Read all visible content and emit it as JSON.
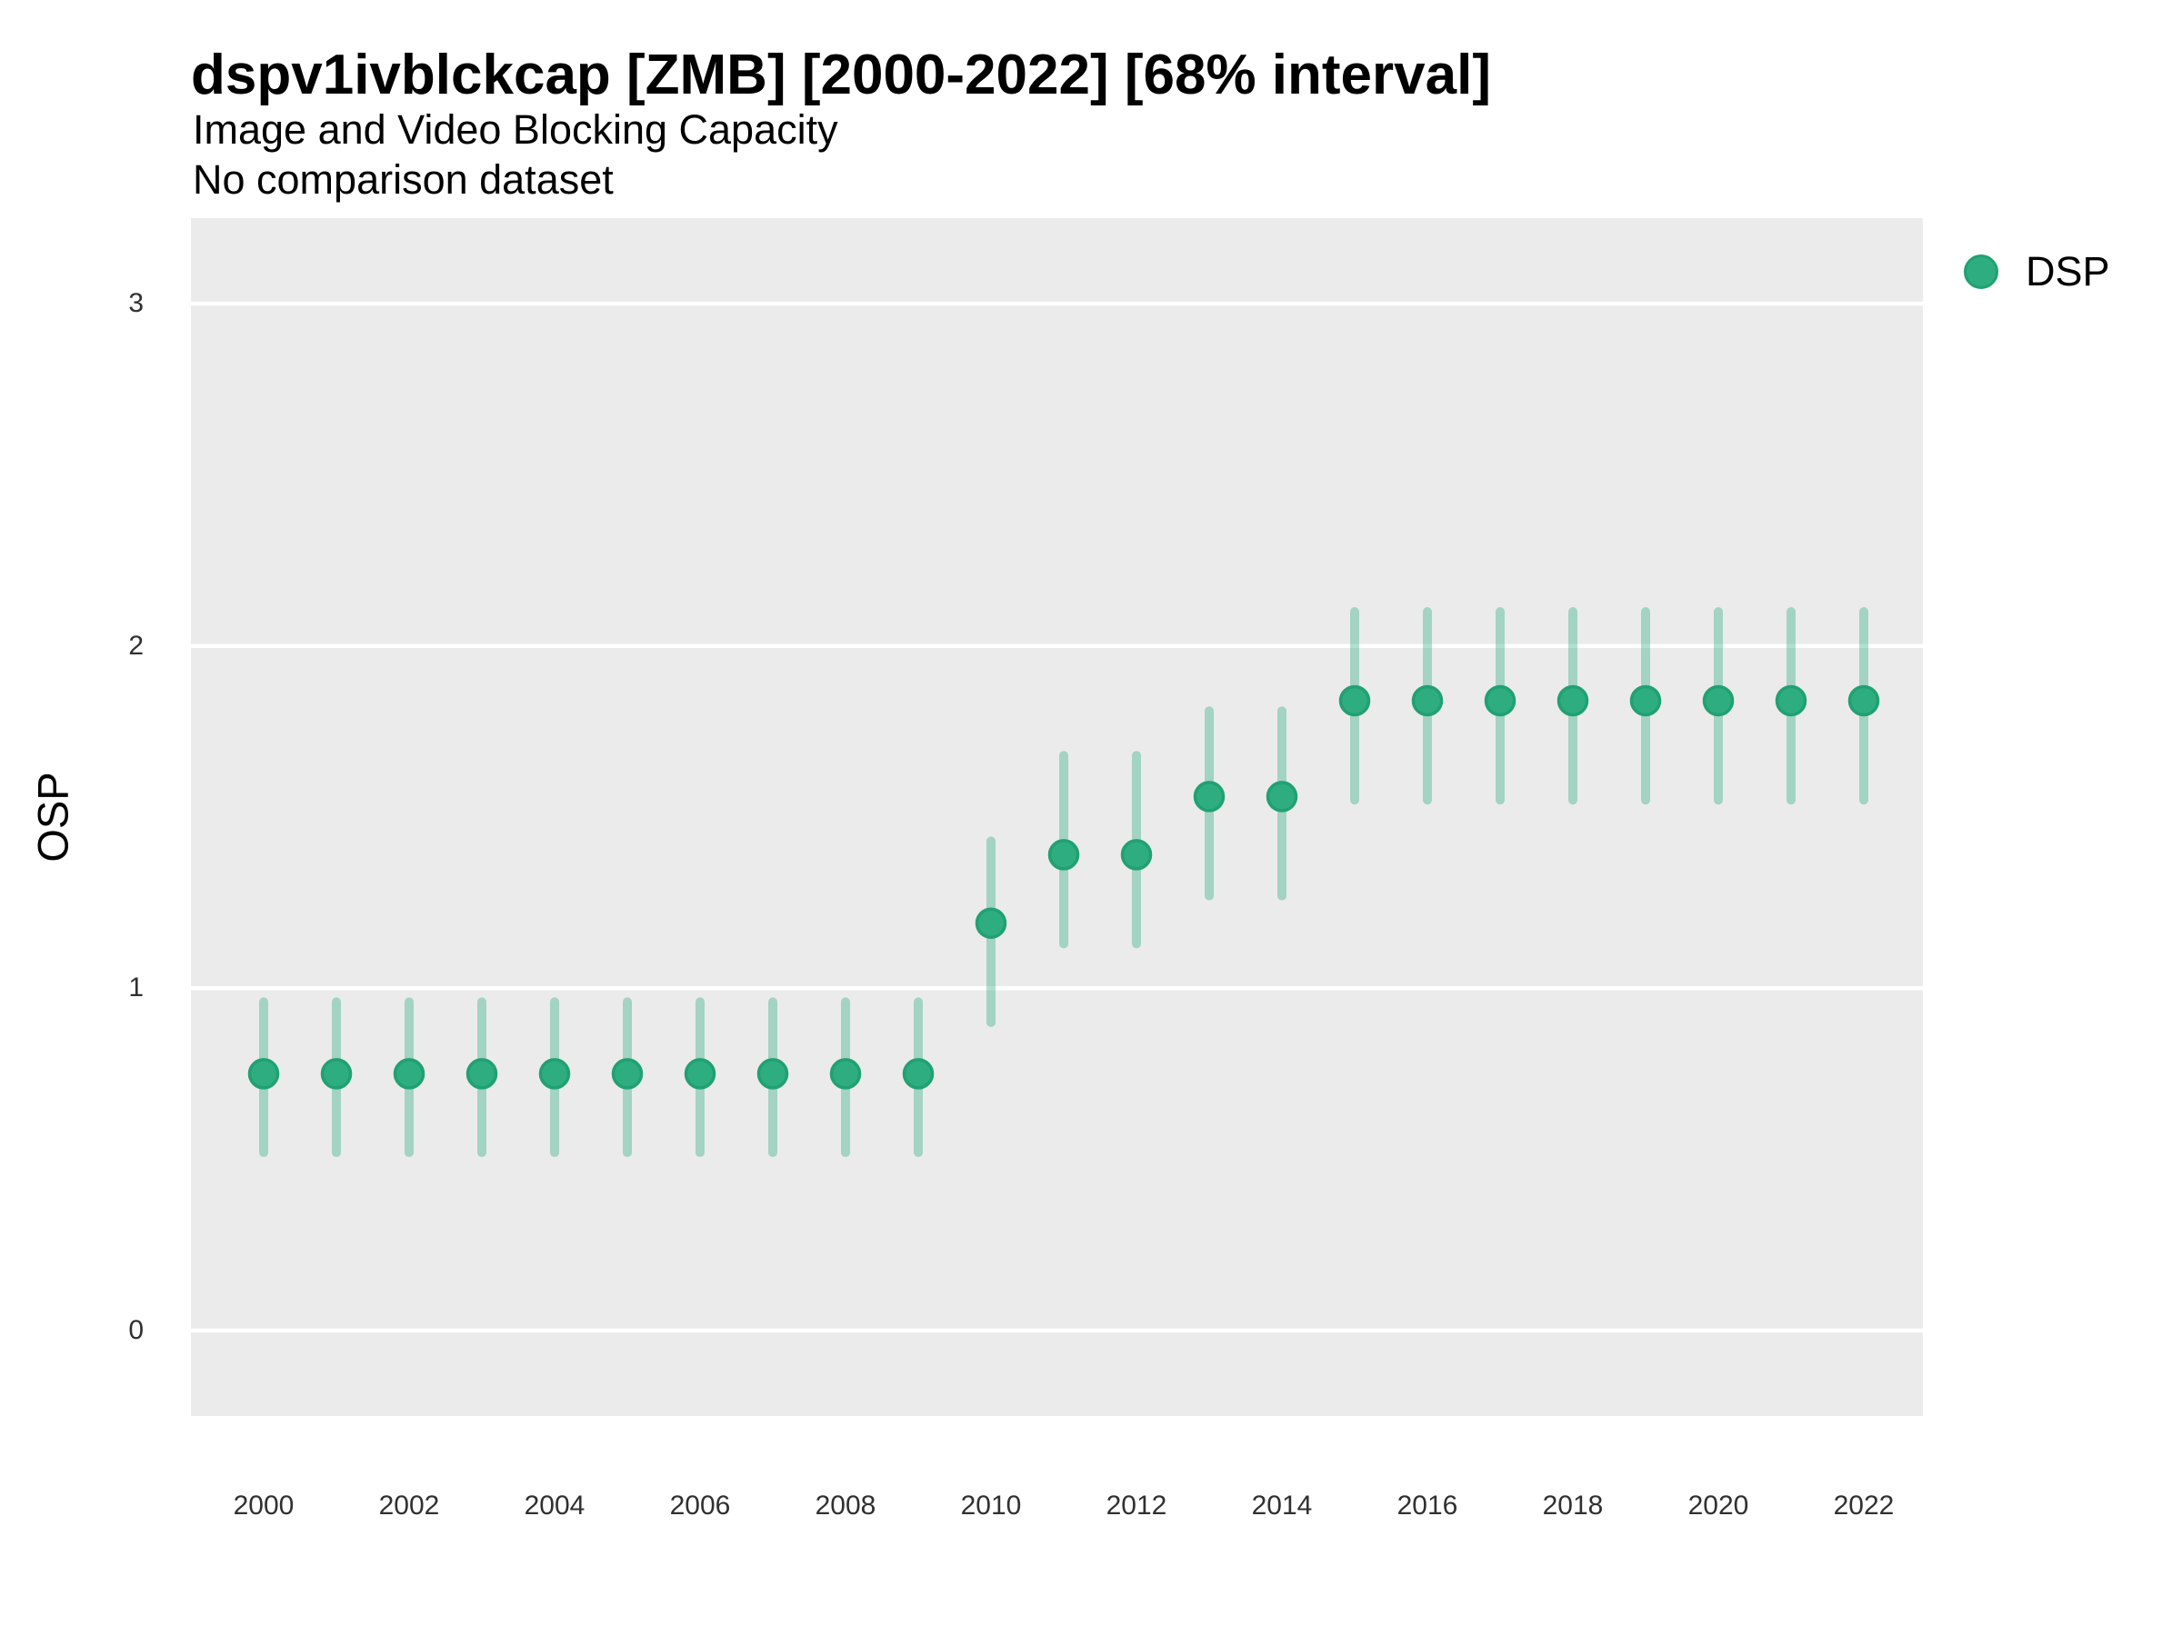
{
  "header": {
    "title": "dspv1ivblckcap [ZMB] [2000-2022] [68% interval]",
    "subtitle": "Image and Video Blocking Capacity",
    "note": "No comparison dataset"
  },
  "legend": {
    "label": "DSP"
  },
  "axes": {
    "y_title": "OSP",
    "x_title": ""
  },
  "colors": {
    "point_fill": "#2EAD80",
    "point_stroke": "#21A173",
    "interval": "rgba(47,174,128,0.38)",
    "panel_background": "#EBEBEB",
    "gridline": "#FFFFFF",
    "tick_text": "#303030"
  },
  "chart_data": {
    "type": "scatter",
    "subtype": "pointrange",
    "title": "dspv1ivblckcap [ZMB] [2000-2022] [68% interval]",
    "subtitle": "Image and Video Blocking Capacity",
    "note": "No comparison dataset",
    "xlabel": "",
    "ylabel": "OSP",
    "legend_position": "right",
    "grid": "major-horizontal",
    "interval_level": "68%",
    "xlim": [
      1999.0,
      2022.8125
    ],
    "ylim": [
      -0.25,
      3.25
    ],
    "x_ticks": [
      2000,
      2002,
      2004,
      2006,
      2008,
      2010,
      2012,
      2014,
      2016,
      2018,
      2020,
      2022
    ],
    "y_ticks": [
      0,
      1,
      2,
      3
    ],
    "series": [
      {
        "name": "DSP",
        "points": [
          {
            "year": 2000,
            "value": 0.75,
            "lo": 0.52,
            "hi": 0.96
          },
          {
            "year": 2001,
            "value": 0.75,
            "lo": 0.52,
            "hi": 0.96
          },
          {
            "year": 2002,
            "value": 0.75,
            "lo": 0.52,
            "hi": 0.96
          },
          {
            "year": 2003,
            "value": 0.75,
            "lo": 0.52,
            "hi": 0.96
          },
          {
            "year": 2004,
            "value": 0.75,
            "lo": 0.52,
            "hi": 0.96
          },
          {
            "year": 2005,
            "value": 0.75,
            "lo": 0.52,
            "hi": 0.96
          },
          {
            "year": 2006,
            "value": 0.75,
            "lo": 0.52,
            "hi": 0.96
          },
          {
            "year": 2007,
            "value": 0.75,
            "lo": 0.52,
            "hi": 0.96
          },
          {
            "year": 2008,
            "value": 0.75,
            "lo": 0.52,
            "hi": 0.96
          },
          {
            "year": 2009,
            "value": 0.75,
            "lo": 0.52,
            "hi": 0.96
          },
          {
            "year": 2010,
            "value": 1.19,
            "lo": 0.9,
            "hi": 1.43
          },
          {
            "year": 2011,
            "value": 1.39,
            "lo": 1.13,
            "hi": 1.68
          },
          {
            "year": 2012,
            "value": 1.39,
            "lo": 1.13,
            "hi": 1.68
          },
          {
            "year": 2013,
            "value": 1.56,
            "lo": 1.27,
            "hi": 1.81
          },
          {
            "year": 2014,
            "value": 1.56,
            "lo": 1.27,
            "hi": 1.81
          },
          {
            "year": 2015,
            "value": 1.84,
            "lo": 1.55,
            "hi": 2.1
          },
          {
            "year": 2016,
            "value": 1.84,
            "lo": 1.55,
            "hi": 2.1
          },
          {
            "year": 2017,
            "value": 1.84,
            "lo": 1.55,
            "hi": 2.1
          },
          {
            "year": 2018,
            "value": 1.84,
            "lo": 1.55,
            "hi": 2.1
          },
          {
            "year": 2019,
            "value": 1.84,
            "lo": 1.55,
            "hi": 2.1
          },
          {
            "year": 2020,
            "value": 1.84,
            "lo": 1.55,
            "hi": 2.1
          },
          {
            "year": 2021,
            "value": 1.84,
            "lo": 1.55,
            "hi": 2.1
          },
          {
            "year": 2022,
            "value": 1.84,
            "lo": 1.55,
            "hi": 2.1
          }
        ]
      }
    ]
  }
}
